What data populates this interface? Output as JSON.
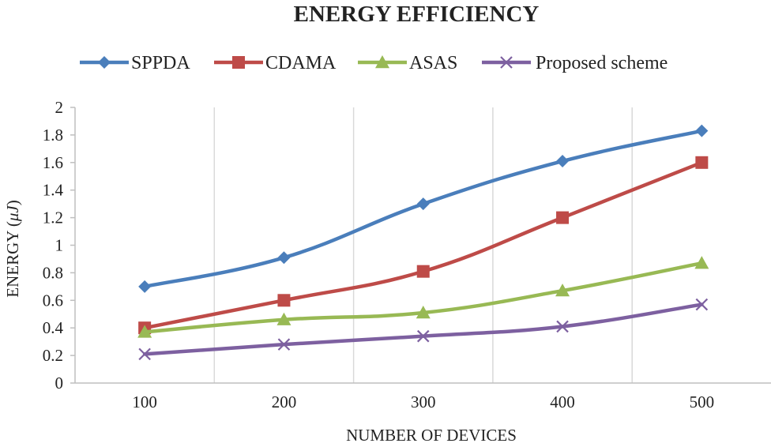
{
  "chart_data": {
    "type": "line",
    "title": "ENERGY EFFICIENCY",
    "xlabel": "NUMBER OF DEVICES",
    "ylabel_prefix": "ENERGY (",
    "ylabel_unit": "μJ",
    "ylabel_suffix": ")",
    "categories": [
      "100",
      "200",
      "300",
      "400",
      "500"
    ],
    "ylim": [
      0,
      2
    ],
    "yticks": [
      "0",
      "0.2",
      "0.4",
      "0.6",
      "0.8",
      "1",
      "1.2",
      "1.4",
      "1.6",
      "1.8",
      "2"
    ],
    "legend_position": "top",
    "grid": "vertical",
    "series": [
      {
        "name": "SPPDA",
        "color": "#4a7ebb",
        "marker": "diamond",
        "values": [
          0.7,
          0.91,
          1.3,
          1.61,
          1.83
        ]
      },
      {
        "name": "CDAMA",
        "color": "#be4b48",
        "marker": "square",
        "values": [
          0.4,
          0.6,
          0.81,
          1.2,
          1.6
        ]
      },
      {
        "name": "ASAS",
        "color": "#98b954",
        "marker": "triangle",
        "values": [
          0.37,
          0.46,
          0.51,
          0.67,
          0.87
        ]
      },
      {
        "name": "Proposed scheme",
        "color": "#7d60a0",
        "marker": "x",
        "values": [
          0.21,
          0.28,
          0.34,
          0.41,
          0.57
        ]
      }
    ]
  }
}
